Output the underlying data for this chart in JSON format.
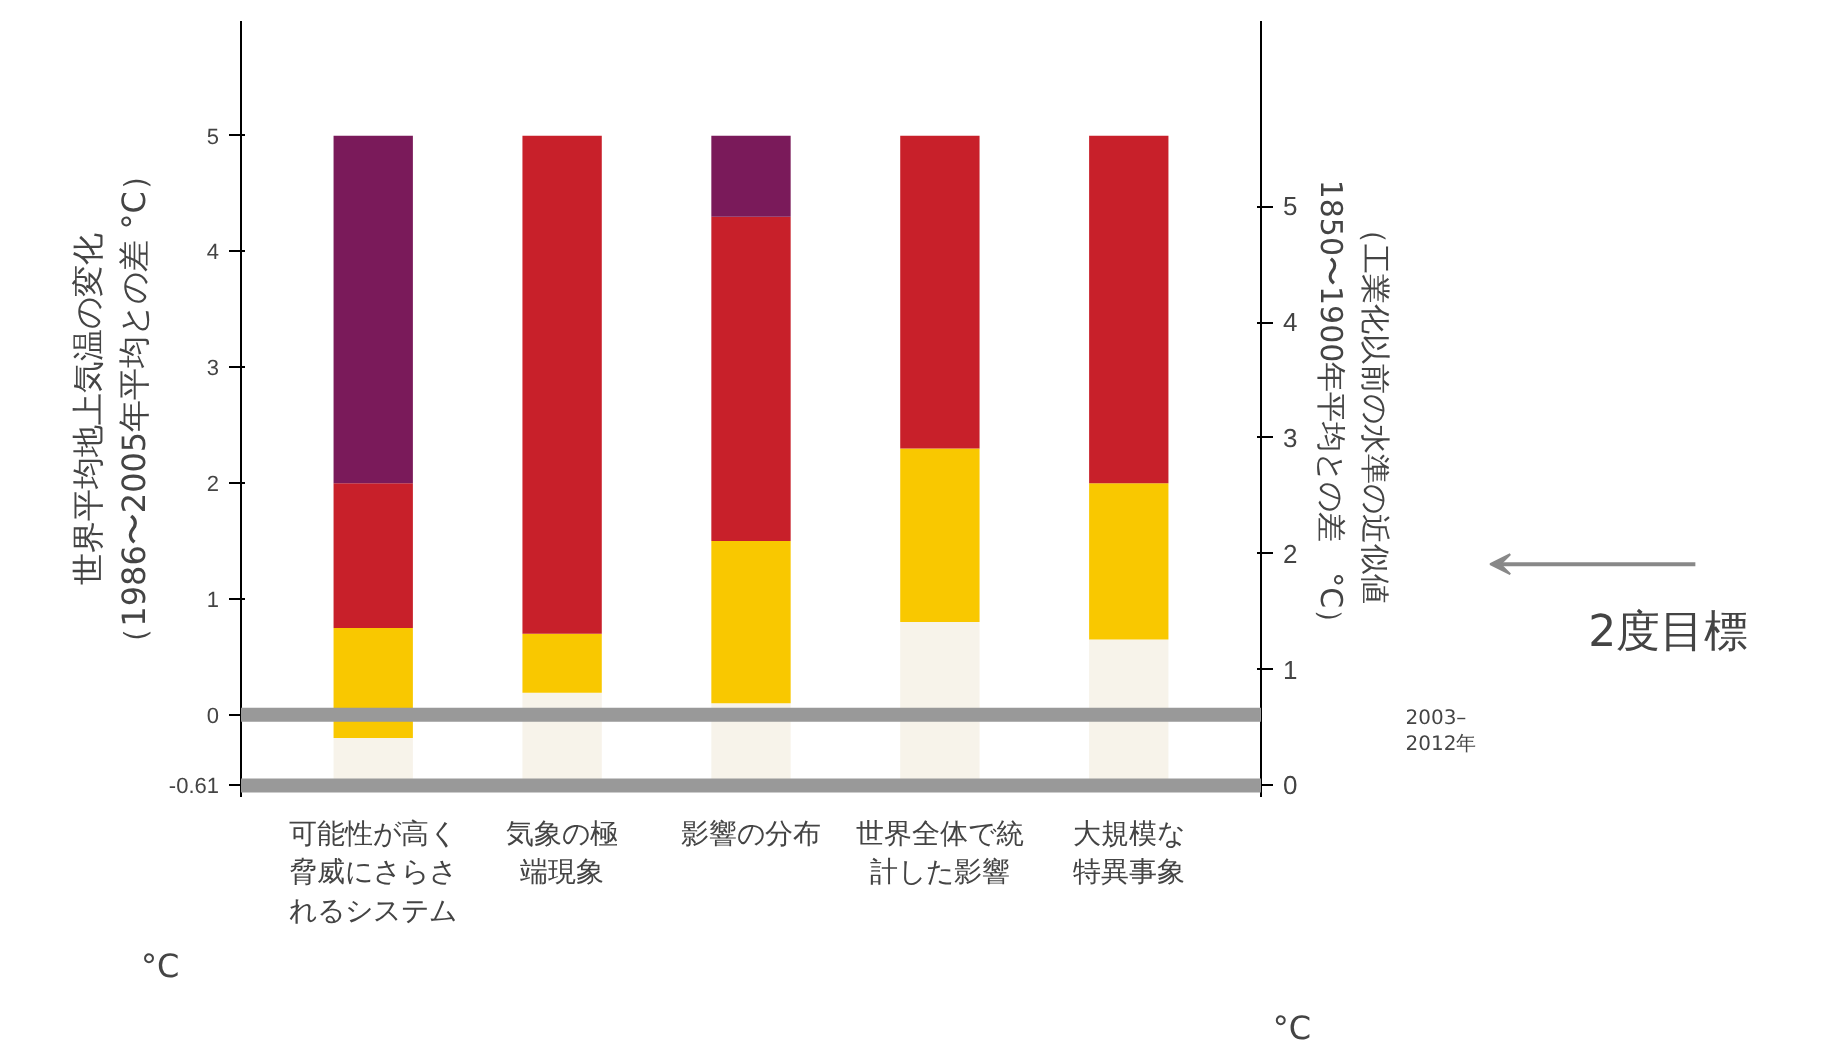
{
  "chart_data": {
    "type": "bar",
    "stacked": true,
    "ylabel": "（工業化以前の水準の近似値1850〜1900年平均との差　°C）",
    "y2label": "世界平均地上気温の変化（1986〜2005年平均との差 °C）",
    "categories": [
      "可能性が高く脅威にさらされるシステム",
      "気象の極端現象",
      "影響の分布",
      "世界全体で統計した影響",
      "大規模な特異事象"
    ],
    "series": [
      {
        "color": "#f7f3ea",
        "values": [
          0.41,
          0.8,
          0.71,
          1.41,
          1.26
        ]
      },
      {
        "color": "#f9c800",
        "values": [
          0.95,
          0.51,
          1.4,
          1.5,
          1.35
        ]
      },
      {
        "color": "#c8202a",
        "values": [
          1.25,
          4.3,
          2.8,
          2.7,
          3.0
        ]
      },
      {
        "color": "#7a1a5a",
        "values": [
          3.0,
          0,
          0.7,
          0,
          0
        ]
      }
    ],
    "ylim": [
      -0.1,
      6.6
    ],
    "yticks": [
      0,
      1,
      2,
      3,
      4,
      5
    ],
    "y2lim": [
      -0.71,
      5.99
    ],
    "y2ticks": [
      {
        "value": -0.61,
        "label": "-0.61"
      },
      0,
      1,
      2,
      3,
      4,
      5
    ],
    "ref_lines": [
      {
        "axis": "y2",
        "value": 0,
        "color": "#999999"
      },
      {
        "axis": "y2",
        "value": -0.61,
        "color": "#999999"
      }
    ],
    "annotations": [
      "2003–\n2012年",
      "2度目標",
      "°C",
      "°C"
    ],
    "grid": false
  }
}
